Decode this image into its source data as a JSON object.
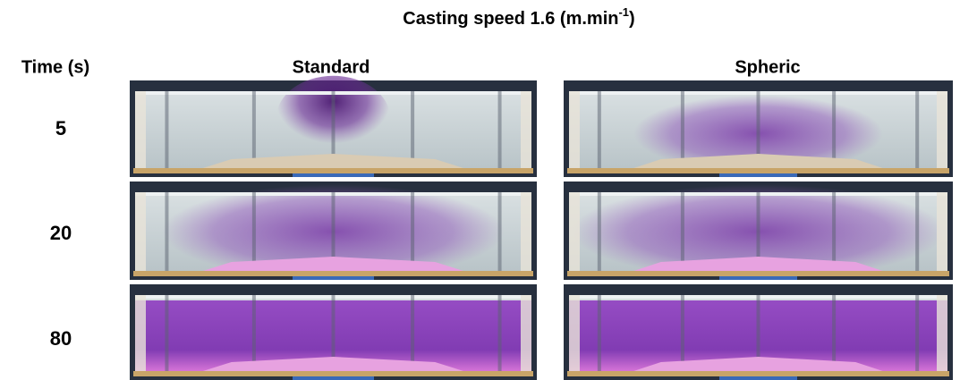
{
  "title": {
    "text": "Casting speed 1.6 (m.min",
    "superscript": "-1",
    "suffix": ")"
  },
  "header": {
    "row_label": "Time (s)",
    "columns": [
      "Standard",
      "Spheric"
    ]
  },
  "rows": [
    5,
    20,
    80
  ]
}
